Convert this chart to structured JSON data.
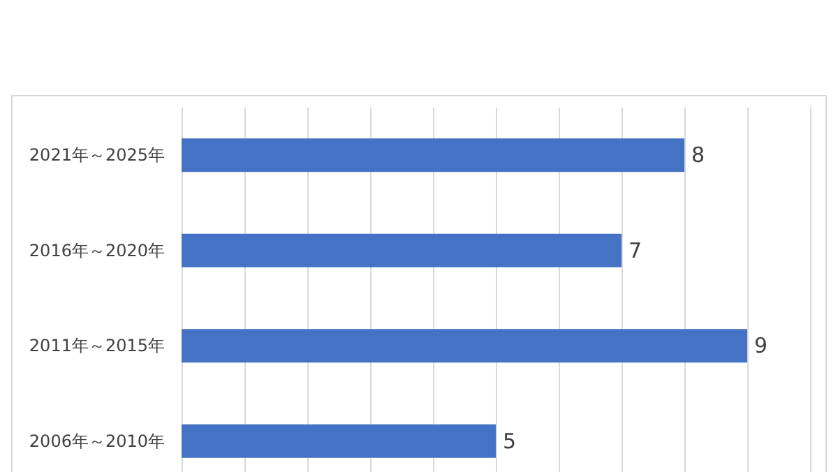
{
  "chart_data": {
    "type": "bar",
    "orientation": "horizontal",
    "categories": [
      "2021年～2025年",
      "2016年～2020年",
      "2011年～2015年",
      "2006年～2010年"
    ],
    "values": [
      8,
      7,
      9,
      5
    ],
    "color": "#4472c4",
    "xlim": [
      0,
      10
    ],
    "xticks": [
      {
        "value": 0,
        "label": null
      },
      {
        "value": 1,
        "label": null
      },
      {
        "value": 2,
        "label": null
      },
      {
        "value": 3,
        "label": null
      },
      {
        "value": 4,
        "label": null
      },
      {
        "value": 5,
        "label": null
      },
      {
        "value": 6,
        "label": null
      },
      {
        "value": 7,
        "label": null
      },
      {
        "value": 8,
        "label": null
      },
      {
        "value": 9,
        "label": null
      },
      {
        "value": 10,
        "label": null
      }
    ],
    "tick_labels": "y",
    "grid": "x",
    "data_labels": true
  }
}
